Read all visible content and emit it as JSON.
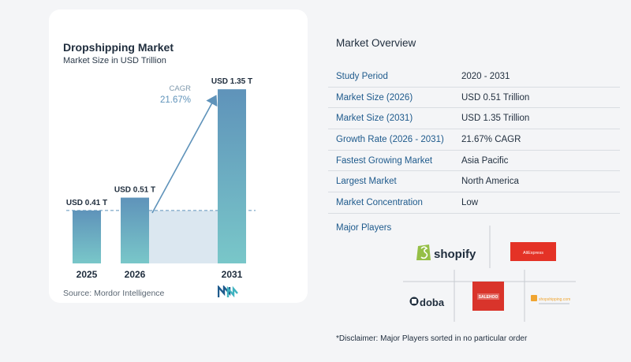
{
  "chart_data": {
    "type": "bar",
    "title": "Dropshipping Market",
    "subtitle": "Market Size in USD Trillion",
    "categories": [
      "2025",
      "2026",
      "2031"
    ],
    "values": [
      0.41,
      0.51,
      1.35
    ],
    "value_labels": [
      "USD 0.41 T",
      "USD 0.51 T",
      "USD 1.35 T"
    ],
    "cagr_label": "CAGR",
    "cagr_value": "21.67%",
    "ylim": [
      0,
      1.4
    ],
    "grid": false,
    "bar_color_top": "#5f93ba",
    "bar_color_bottom": "#79c7c9",
    "shade_color": "#dbe7f0",
    "arrow_color": "#5f93ba"
  },
  "source": "Source: Mordor Intelligence",
  "overview": {
    "title": "Market Overview",
    "rows": [
      {
        "key": "Study Period",
        "value": "2020 - 2031"
      },
      {
        "key": "Market Size (2026)",
        "value": "USD 0.51 Trillion"
      },
      {
        "key": "Market Size (2031)",
        "value": "USD 1.35 Trillion"
      },
      {
        "key": "Growth Rate (2026 - 2031)",
        "value": "21.67% CAGR"
      },
      {
        "key": "Fastest Growing Market",
        "value": "Asia Pacific"
      },
      {
        "key": "Largest Market",
        "value": "North America"
      },
      {
        "key": "Market Concentration",
        "value": "Low"
      }
    ]
  },
  "players": {
    "title": "Major Players",
    "logos": [
      "shopify",
      "AliExpress",
      "doba",
      "SALEHOO",
      "shopshipping.com"
    ]
  },
  "disclaimer": "*Disclaimer: Major Players sorted in no particular order"
}
